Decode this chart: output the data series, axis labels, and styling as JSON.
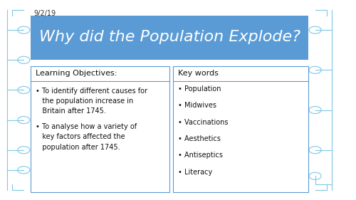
{
  "background_color": "#ffffff",
  "date_text": "9/2/19",
  "date_color": "#333333",
  "date_fontsize": 7,
  "title_text": "Why did the Population Explode?",
  "title_bg_color": "#5b9bd5",
  "title_text_color": "#ffffff",
  "title_fontsize": 16,
  "lo_header": "Learning Objectives:",
  "lo_items": [
    "To identify different causes for the population increase in Britain after 1745.",
    "To analyse how a variety of key factors affected the population after 1745."
  ],
  "kw_header": "Key words",
  "kw_items": [
    "Population",
    "Midwives",
    "Vaccinations",
    "Aesthetics",
    "Antiseptics",
    "Literacy"
  ],
  "box_border_color": "#5b9bd5",
  "box_bg_color": "#ffffff",
  "header_fontsize": 8,
  "body_fontsize": 7,
  "circuit_color": "#7ec8e3"
}
